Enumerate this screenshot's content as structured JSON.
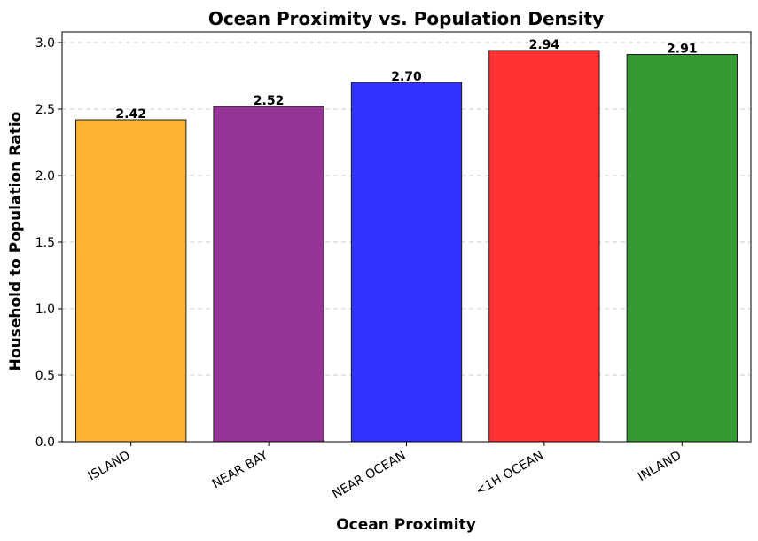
{
  "chart_data": {
    "type": "bar",
    "title": "Ocean Proximity vs. Population Density",
    "xlabel": "Ocean Proximity",
    "ylabel": "Household to Population Ratio",
    "categories": [
      "ISLAND",
      "NEAR BAY",
      "NEAR OCEAN",
      "<1H OCEAN",
      "INLAND"
    ],
    "values": [
      2.42,
      2.52,
      2.7,
      2.94,
      2.91
    ],
    "data_labels": [
      "2.42",
      "2.52",
      "2.70",
      "2.94",
      "2.91"
    ],
    "colors": [
      "#FFB533",
      "#963596",
      "#3333FF",
      "#FF3333",
      "#339933"
    ],
    "ylim": [
      0,
      3.08
    ],
    "yticks": [
      0.0,
      0.5,
      1.0,
      1.5,
      2.0,
      2.5,
      3.0
    ],
    "ytick_labels": [
      "0.0",
      "0.5",
      "1.0",
      "1.5",
      "2.0",
      "2.5",
      "3.0"
    ],
    "grid": "y-dashed",
    "legend": "none"
  }
}
